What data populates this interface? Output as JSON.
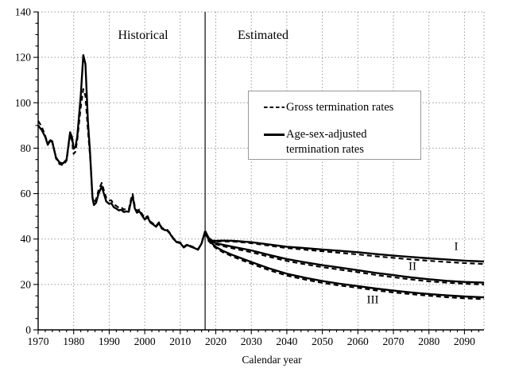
{
  "chart_data": {
    "type": "line",
    "title": "",
    "xlabel": "Calendar year",
    "ylabel": "",
    "xlim": [
      1970,
      2095.5
    ],
    "ylim": [
      0,
      140
    ],
    "xticks": [
      1970,
      1980,
      1990,
      2000,
      2010,
      2020,
      2030,
      2040,
      2050,
      2060,
      2070,
      2080,
      2090
    ],
    "yticks": [
      0,
      20,
      40,
      60,
      80,
      100,
      120,
      140
    ],
    "x_minor_step": 2,
    "y_minor_step": 5,
    "grid": true,
    "grid_style": "dotted",
    "divider": {
      "year": 2017,
      "left_label": "Historical",
      "right_label": "Estimated"
    },
    "legend": [
      {
        "label": "Gross termination rates",
        "style": "dashed"
      },
      {
        "label": "Age-sex-adjusted\ntermination rates",
        "style": "solid"
      }
    ],
    "annotations": [
      {
        "text": "I",
        "x": 2087.5,
        "y": 36.5
      },
      {
        "text": "II",
        "x": 2075,
        "y": 28.0
      },
      {
        "text": "III",
        "x": 2064,
        "y": 13.0
      }
    ],
    "series": [
      {
        "name": "Age-sex-adjusted termination rates (historical)",
        "style": "solid",
        "points": [
          [
            1970,
            90
          ],
          [
            1971,
            88
          ],
          [
            1972,
            85
          ],
          [
            1972.7,
            81.5
          ],
          [
            1973.5,
            83.5
          ],
          [
            1974,
            82.5
          ],
          [
            1975,
            76
          ],
          [
            1976,
            73.7
          ],
          [
            1977,
            73.3
          ],
          [
            1978,
            75
          ],
          [
            1979,
            87
          ],
          [
            1979.5,
            85
          ],
          [
            1980,
            79.8
          ],
          [
            1980.5,
            80.5
          ],
          [
            1981,
            85
          ],
          [
            1982,
            103
          ],
          [
            1982.7,
            121
          ],
          [
            1983.3,
            117
          ],
          [
            1984,
            92
          ],
          [
            1984.6,
            78
          ],
          [
            1985.3,
            58
          ],
          [
            1985.7,
            55
          ],
          [
            1986.3,
            56
          ],
          [
            1987,
            60
          ],
          [
            1987.9,
            63.2
          ],
          [
            1988.5,
            60
          ],
          [
            1989.2,
            56.5
          ],
          [
            1990,
            55.5
          ],
          [
            1990.6,
            55.8
          ],
          [
            1991.3,
            54
          ],
          [
            1992,
            53.4
          ],
          [
            1992.7,
            52.6
          ],
          [
            1993.4,
            52.9
          ],
          [
            1994.1,
            51.9
          ],
          [
            1994.8,
            52.2
          ],
          [
            1995.5,
            52
          ],
          [
            1996.2,
            57
          ],
          [
            1996.6,
            58.8
          ],
          [
            1997.2,
            53.5
          ],
          [
            1997.8,
            51.6
          ],
          [
            1998.5,
            52.2
          ],
          [
            1999.2,
            50.5
          ],
          [
            2000,
            48.6
          ],
          [
            2000.8,
            49.6
          ],
          [
            2001.6,
            47.2
          ],
          [
            2002.4,
            46.4
          ],
          [
            2003.2,
            45.4
          ],
          [
            2004,
            47
          ],
          [
            2004.8,
            44.6
          ],
          [
            2005.6,
            44
          ],
          [
            2006.3,
            43.8
          ],
          [
            2007,
            42.6
          ],
          [
            2008,
            40.2
          ],
          [
            2009,
            38.6
          ],
          [
            2010,
            38.2
          ],
          [
            2011,
            36.3
          ],
          [
            2012,
            37.4
          ],
          [
            2013,
            36.6
          ],
          [
            2014,
            36
          ],
          [
            2015,
            35.3
          ],
          [
            2016,
            38
          ],
          [
            2017,
            43.5
          ]
        ]
      },
      {
        "name": "Gross termination rates (historical)",
        "style": "dashed",
        "points": [
          [
            1970,
            92
          ],
          [
            1971,
            89.5
          ],
          [
            1972,
            85.5
          ],
          [
            1972.7,
            82
          ],
          [
            1973.5,
            84
          ],
          [
            1974,
            83
          ],
          [
            1975,
            75.5
          ],
          [
            1976,
            73
          ],
          [
            1977,
            72.5
          ],
          [
            1978,
            74.5
          ],
          [
            1979,
            86
          ],
          [
            1979.5,
            83.5
          ],
          [
            1980,
            77.5
          ],
          [
            1980.5,
            78.5
          ],
          [
            1981,
            83.5
          ],
          [
            1982,
            98
          ],
          [
            1982.7,
            106
          ],
          [
            1983.3,
            103
          ],
          [
            1984,
            88
          ],
          [
            1984.6,
            76.5
          ],
          [
            1985.3,
            58.5
          ],
          [
            1985.7,
            56
          ],
          [
            1986.3,
            57.5
          ],
          [
            1987,
            61.5
          ],
          [
            1987.9,
            64.7
          ],
          [
            1988.5,
            61.5
          ],
          [
            1989.2,
            58
          ],
          [
            1990,
            57
          ],
          [
            1990.6,
            57
          ],
          [
            1991.3,
            55.3
          ],
          [
            1992,
            54.6
          ],
          [
            1992.7,
            53.8
          ],
          [
            1993.4,
            54
          ],
          [
            1994.1,
            53
          ],
          [
            1994.8,
            53.3
          ],
          [
            1995.5,
            53
          ],
          [
            1996.2,
            58
          ],
          [
            1996.6,
            59.8
          ],
          [
            1997.2,
            54.5
          ],
          [
            1997.8,
            52.4
          ],
          [
            1998.5,
            53
          ],
          [
            1999.2,
            51.2
          ],
          [
            2000,
            49.2
          ],
          [
            2000.8,
            50.1
          ],
          [
            2001.6,
            47.7
          ],
          [
            2002.4,
            46.8
          ],
          [
            2003.2,
            45.8
          ],
          [
            2004,
            47.4
          ],
          [
            2004.8,
            45
          ],
          [
            2005.6,
            44.3
          ],
          [
            2006.3,
            44.1
          ],
          [
            2007,
            42.9
          ],
          [
            2008,
            40.5
          ],
          [
            2009,
            38.9
          ],
          [
            2010,
            38.5
          ],
          [
            2011,
            36.6
          ],
          [
            2012,
            37.7
          ],
          [
            2013,
            36.9
          ],
          [
            2014,
            36.3
          ],
          [
            2015,
            35.6
          ],
          [
            2016,
            38.2
          ],
          [
            2017,
            42.8
          ]
        ]
      },
      {
        "name": "Alternative I age-sex-adjusted (estimated)",
        "style": "solid",
        "points": [
          [
            2017,
            43.5
          ],
          [
            2018,
            40.5
          ],
          [
            2019,
            39.3
          ],
          [
            2020,
            39.2
          ],
          [
            2022,
            39.3
          ],
          [
            2025,
            39.2
          ],
          [
            2030,
            38.6
          ],
          [
            2035,
            37.6
          ],
          [
            2040,
            36.6
          ],
          [
            2045,
            36.0
          ],
          [
            2050,
            35.4
          ],
          [
            2055,
            34.8
          ],
          [
            2060,
            34.2
          ],
          [
            2065,
            33.4
          ],
          [
            2070,
            32.7
          ],
          [
            2075,
            32.1
          ],
          [
            2080,
            31.5
          ],
          [
            2085,
            31.0
          ],
          [
            2090,
            30.5
          ],
          [
            2095.5,
            30.1
          ]
        ]
      },
      {
        "name": "Alternative I gross (estimated)",
        "style": "dashed",
        "points": [
          [
            2017,
            42.8
          ],
          [
            2018,
            40.2
          ],
          [
            2019,
            39.0
          ],
          [
            2020,
            38.9
          ],
          [
            2022,
            39.0
          ],
          [
            2025,
            38.9
          ],
          [
            2030,
            38.2
          ],
          [
            2035,
            37.1
          ],
          [
            2040,
            36.0
          ],
          [
            2045,
            35.3
          ],
          [
            2050,
            34.6
          ],
          [
            2055,
            33.9
          ],
          [
            2060,
            33.2
          ],
          [
            2065,
            32.4
          ],
          [
            2070,
            31.7
          ],
          [
            2075,
            31.0
          ],
          [
            2080,
            30.4
          ],
          [
            2085,
            29.9
          ],
          [
            2090,
            29.4
          ],
          [
            2095.5,
            29.0
          ]
        ]
      },
      {
        "name": "Alternative II age-sex-adjusted (estimated)",
        "style": "solid",
        "points": [
          [
            2017,
            43.5
          ],
          [
            2018,
            40.0
          ],
          [
            2019,
            38.8
          ],
          [
            2020,
            38.2
          ],
          [
            2022,
            37.5
          ],
          [
            2025,
            36.5
          ],
          [
            2030,
            35.0
          ],
          [
            2035,
            33.0
          ],
          [
            2040,
            31.2
          ],
          [
            2045,
            29.8
          ],
          [
            2050,
            28.5
          ],
          [
            2055,
            27.4
          ],
          [
            2060,
            26.3
          ],
          [
            2065,
            25.1
          ],
          [
            2070,
            24.1
          ],
          [
            2075,
            23.1
          ],
          [
            2080,
            22.3
          ],
          [
            2085,
            21.6
          ],
          [
            2090,
            21.1
          ],
          [
            2095.5,
            20.8
          ]
        ]
      },
      {
        "name": "Alternative II gross (estimated)",
        "style": "dashed",
        "points": [
          [
            2017,
            42.8
          ],
          [
            2018,
            39.6
          ],
          [
            2019,
            38.3
          ],
          [
            2020,
            37.7
          ],
          [
            2022,
            36.9
          ],
          [
            2025,
            35.8
          ],
          [
            2030,
            34.2
          ],
          [
            2035,
            32.2
          ],
          [
            2040,
            30.3
          ],
          [
            2045,
            28.9
          ],
          [
            2050,
            27.6
          ],
          [
            2055,
            26.5
          ],
          [
            2060,
            25.4
          ],
          [
            2065,
            24.2
          ],
          [
            2070,
            23.2
          ],
          [
            2075,
            22.2
          ],
          [
            2080,
            21.4
          ],
          [
            2085,
            20.8
          ],
          [
            2090,
            20.3
          ],
          [
            2095.5,
            20.0
          ]
        ]
      },
      {
        "name": "Alternative III age-sex-adjusted (estimated)",
        "style": "solid",
        "points": [
          [
            2017,
            43.5
          ],
          [
            2018,
            39.5
          ],
          [
            2019,
            38.0
          ],
          [
            2020,
            36.5
          ],
          [
            2022,
            34.8
          ],
          [
            2025,
            32.8
          ],
          [
            2030,
            29.9
          ],
          [
            2035,
            27.1
          ],
          [
            2040,
            24.7
          ],
          [
            2045,
            23.0
          ],
          [
            2050,
            21.5
          ],
          [
            2055,
            20.3
          ],
          [
            2060,
            19.3
          ],
          [
            2065,
            18.2
          ],
          [
            2070,
            17.3
          ],
          [
            2075,
            16.5
          ],
          [
            2080,
            15.8
          ],
          [
            2085,
            15.2
          ],
          [
            2090,
            14.7
          ],
          [
            2095.5,
            14.3
          ]
        ]
      },
      {
        "name": "Alternative III gross (estimated)",
        "style": "dashed",
        "points": [
          [
            2017,
            42.8
          ],
          [
            2018,
            39.1
          ],
          [
            2019,
            37.5
          ],
          [
            2020,
            36.0
          ],
          [
            2022,
            34.2
          ],
          [
            2025,
            32.1
          ],
          [
            2030,
            29.1
          ],
          [
            2035,
            26.3
          ],
          [
            2040,
            23.9
          ],
          [
            2045,
            22.2
          ],
          [
            2050,
            20.7
          ],
          [
            2055,
            19.5
          ],
          [
            2060,
            18.5
          ],
          [
            2065,
            17.4
          ],
          [
            2070,
            16.5
          ],
          [
            2075,
            15.7
          ],
          [
            2080,
            15.0
          ],
          [
            2085,
            14.4
          ],
          [
            2090,
            13.9
          ],
          [
            2095.5,
            13.5
          ]
        ]
      }
    ]
  }
}
